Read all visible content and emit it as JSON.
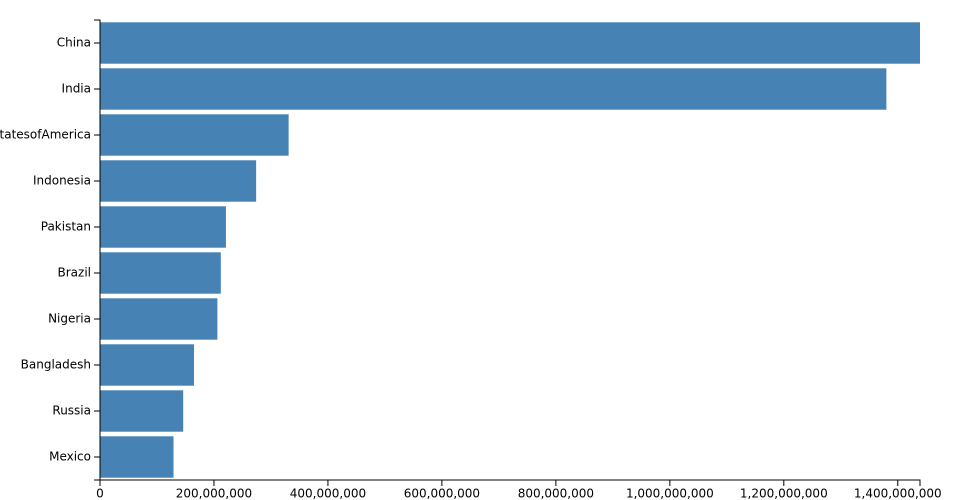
{
  "chart_data": {
    "type": "bar",
    "orientation": "horizontal",
    "categories": [
      "China",
      "India",
      "UnitedStatesofAmerica",
      "Indonesia",
      "Pakistan",
      "Brazil",
      "Nigeria",
      "Bangladesh",
      "Russia",
      "Mexico"
    ],
    "values": [
      1439000000,
      1380000000,
      331000000,
      274000000,
      221000000,
      212000000,
      206000000,
      165000000,
      146000000,
      129000000
    ],
    "color": "#4682b4",
    "xlim": [
      0,
      1439000000
    ],
    "xticks": [
      0,
      {
        "value": 200000000,
        "label": "200,000,000"
      },
      {
        "value": 400000000,
        "label": "400,000,000"
      },
      {
        "value": 600000000,
        "label": "600,000,000"
      },
      {
        "value": 800000000,
        "label": "800,000,000"
      },
      {
        "value": 1000000000,
        "label": "1,000,000,000"
      },
      {
        "value": 1200000000,
        "label": "1,200,000,000"
      },
      {
        "value": 1400000000,
        "label": "1,400,000,000"
      }
    ],
    "grid": false
  }
}
